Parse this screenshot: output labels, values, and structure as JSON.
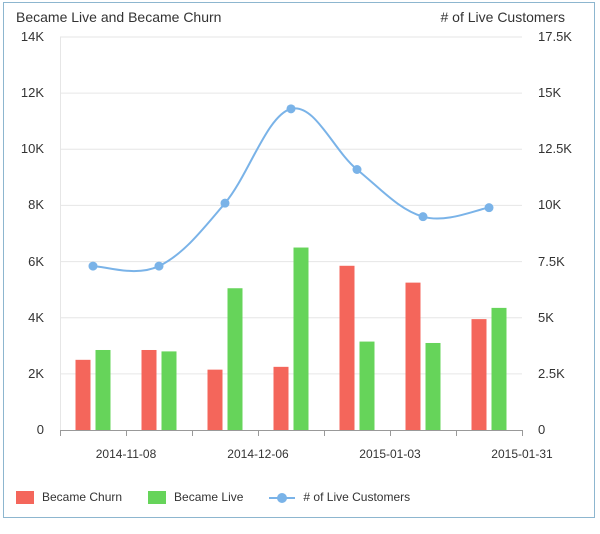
{
  "chart_data": {
    "type": "bar",
    "title_left": "Became Live and Became Churn",
    "title_right": "# of Live Customers",
    "left_axis": {
      "min": 0,
      "max": 14000,
      "ticks": [
        "0",
        "2K",
        "4K",
        "6K",
        "8K",
        "10K",
        "12K",
        "14K"
      ],
      "tick_values": [
        0,
        2000,
        4000,
        6000,
        8000,
        10000,
        12000,
        14000
      ]
    },
    "right_axis": {
      "min": 0,
      "max": 17500,
      "ticks": [
        "0",
        "2.5K",
        "5K",
        "7.5K",
        "10K",
        "12.5K",
        "15K",
        "17.5K"
      ],
      "tick_values": [
        0,
        2500,
        5000,
        7500,
        10000,
        12500,
        15000,
        17500
      ]
    },
    "x_labels": [
      "2014-11-08",
      "2014-12-06",
      "2015-01-03",
      "2015-01-31"
    ],
    "series": [
      {
        "name": "Became Churn",
        "color": "#f4665b",
        "axis": "left",
        "type": "bar",
        "values": [
          2500,
          2850,
          2150,
          2250,
          5850,
          5250,
          3950
        ]
      },
      {
        "name": "Became Live",
        "color": "#66d45a",
        "axis": "left",
        "type": "bar",
        "values": [
          2850,
          2800,
          5050,
          6500,
          3150,
          3100,
          4350
        ]
      },
      {
        "name": "# of Live Customers",
        "color": "#7ab3e8",
        "axis": "right",
        "type": "line",
        "values": [
          7300,
          7300,
          10100,
          14300,
          11600,
          9500,
          9900
        ]
      }
    ]
  },
  "legend": {
    "churn": "Became Churn",
    "live": "Became Live",
    "customers": "# of Live Customers"
  }
}
